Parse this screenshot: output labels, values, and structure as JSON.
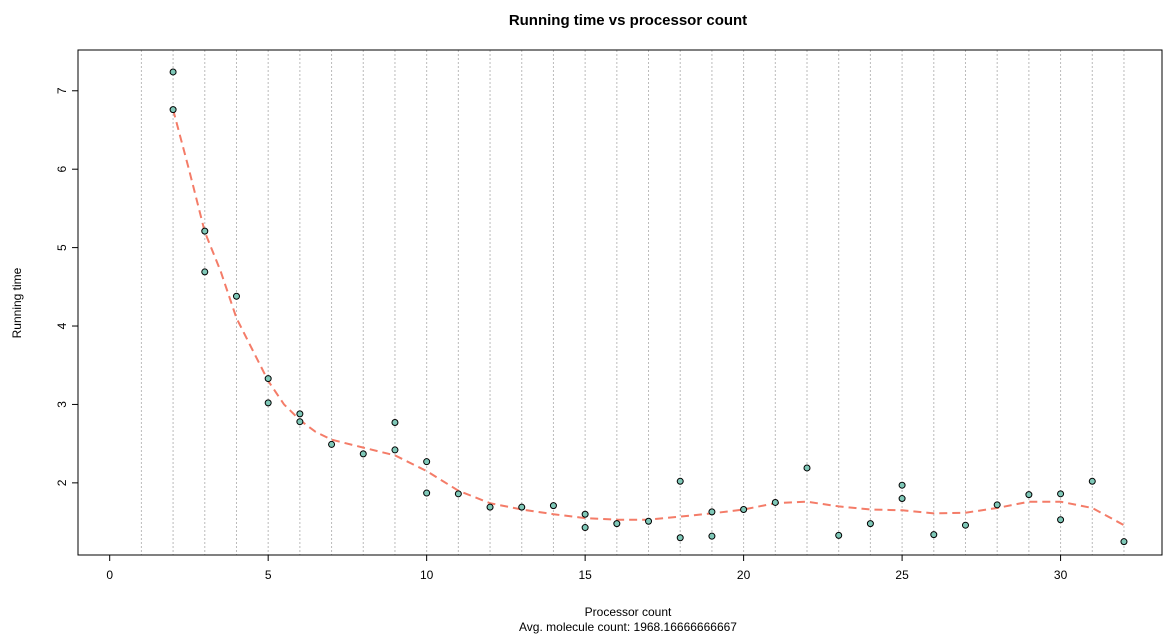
{
  "chart_data": {
    "type": "scatter",
    "title": "Running time vs processor count",
    "xlabel": "Processor count",
    "subtitle": "Avg. molecule count: 1968.16666666667",
    "ylabel": "Running time",
    "xlim": [
      -1,
      33.2
    ],
    "ylim": [
      1.08,
      7.52
    ],
    "x_ticks": [
      0,
      5,
      10,
      15,
      20,
      25,
      30
    ],
    "y_ticks": [
      2,
      3,
      4,
      5,
      6,
      7
    ],
    "vertical_gridlines": [
      1,
      2,
      3,
      4,
      5,
      6,
      7,
      8,
      9,
      10,
      11,
      12,
      13,
      14,
      15,
      16,
      17,
      18,
      19,
      20,
      21,
      22,
      23,
      24,
      25,
      26,
      27,
      28,
      29,
      30,
      31,
      32
    ],
    "points": [
      {
        "x": 2,
        "y": 7.24
      },
      {
        "x": 2,
        "y": 6.76
      },
      {
        "x": 3,
        "y": 5.21
      },
      {
        "x": 3,
        "y": 4.69
      },
      {
        "x": 4,
        "y": 4.38
      },
      {
        "x": 5,
        "y": 3.33
      },
      {
        "x": 5,
        "y": 3.02
      },
      {
        "x": 6,
        "y": 2.88
      },
      {
        "x": 6,
        "y": 2.78
      },
      {
        "x": 7,
        "y": 2.49
      },
      {
        "x": 8,
        "y": 2.37
      },
      {
        "x": 9,
        "y": 2.77
      },
      {
        "x": 9,
        "y": 2.42
      },
      {
        "x": 10,
        "y": 2.27
      },
      {
        "x": 10,
        "y": 1.87
      },
      {
        "x": 11,
        "y": 1.86
      },
      {
        "x": 12,
        "y": 1.69
      },
      {
        "x": 13,
        "y": 1.69
      },
      {
        "x": 14,
        "y": 1.71
      },
      {
        "x": 15,
        "y": 1.6
      },
      {
        "x": 15,
        "y": 1.43
      },
      {
        "x": 16,
        "y": 1.48
      },
      {
        "x": 17,
        "y": 1.51
      },
      {
        "x": 18,
        "y": 2.02
      },
      {
        "x": 18,
        "y": 1.3
      },
      {
        "x": 19,
        "y": 1.63
      },
      {
        "x": 19,
        "y": 1.32
      },
      {
        "x": 20,
        "y": 1.66
      },
      {
        "x": 21,
        "y": 1.75
      },
      {
        "x": 22,
        "y": 2.19
      },
      {
        "x": 23,
        "y": 1.33
      },
      {
        "x": 24,
        "y": 1.48
      },
      {
        "x": 25,
        "y": 1.97
      },
      {
        "x": 25,
        "y": 1.8
      },
      {
        "x": 26,
        "y": 1.34
      },
      {
        "x": 27,
        "y": 1.46
      },
      {
        "x": 28,
        "y": 1.72
      },
      {
        "x": 29,
        "y": 1.85
      },
      {
        "x": 30,
        "y": 1.86
      },
      {
        "x": 30,
        "y": 1.53
      },
      {
        "x": 31,
        "y": 2.02
      },
      {
        "x": 32,
        "y": 1.25
      }
    ],
    "smooth_line": {
      "style": "dashed",
      "x": [
        2,
        2.5,
        3,
        3.5,
        4,
        4.5,
        5,
        5.5,
        6,
        6.5,
        7,
        8,
        9,
        10,
        11,
        12,
        13,
        14,
        15,
        16,
        17,
        18,
        19,
        20,
        21,
        22,
        23,
        24,
        25,
        26,
        27,
        28,
        29,
        30,
        31,
        32
      ],
      "y": [
        6.76,
        6.0,
        5.2,
        4.7,
        4.1,
        3.7,
        3.3,
        3.0,
        2.8,
        2.65,
        2.55,
        2.45,
        2.35,
        2.15,
        1.9,
        1.74,
        1.66,
        1.6,
        1.55,
        1.53,
        1.53,
        1.57,
        1.61,
        1.66,
        1.74,
        1.76,
        1.7,
        1.66,
        1.65,
        1.61,
        1.62,
        1.68,
        1.76,
        1.76,
        1.68,
        1.46
      ]
    },
    "grid": "vertical dotted",
    "colors": {
      "point_fill": "#7fc8b8",
      "point_stroke": "#000000",
      "line": "#f47c68",
      "grid": "#bbbbbb",
      "frame": "#000000"
    }
  }
}
